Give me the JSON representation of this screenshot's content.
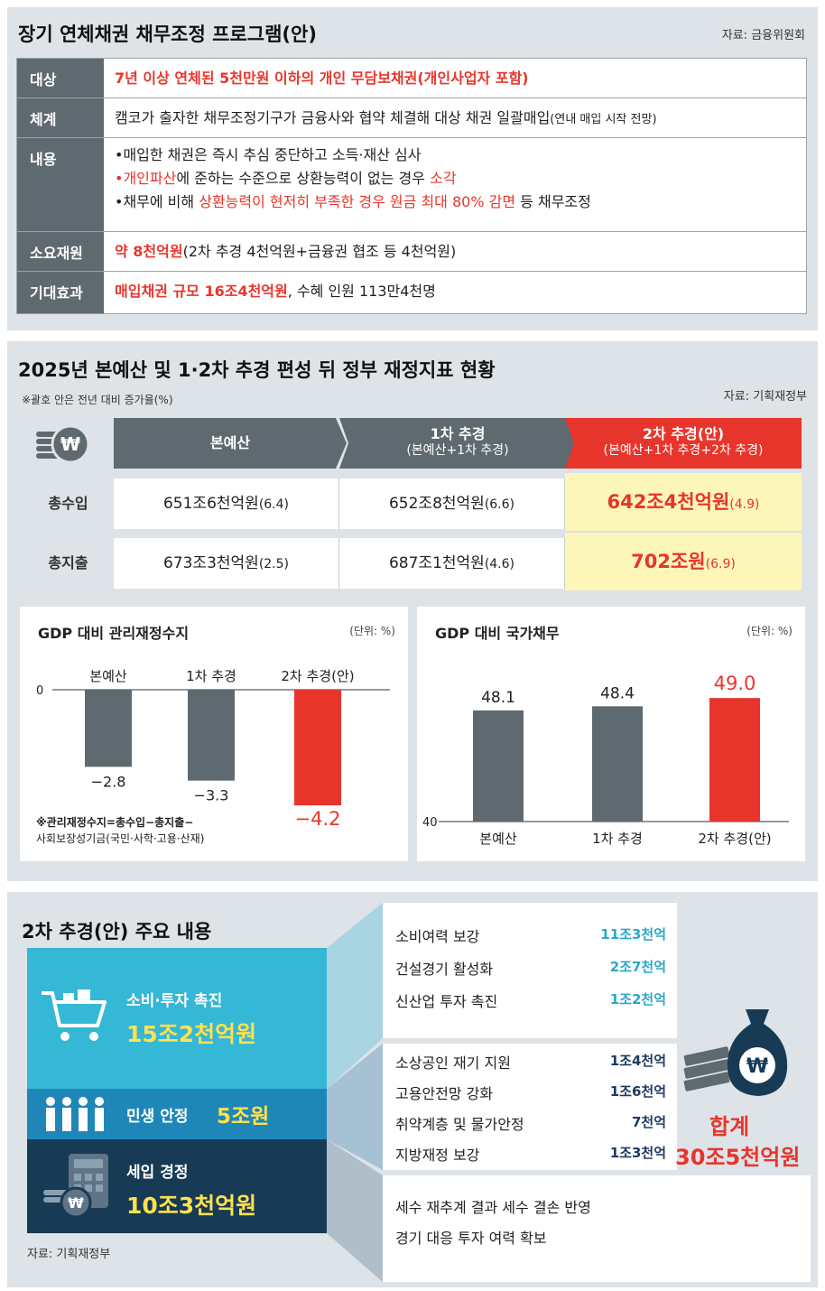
{
  "section1": {
    "title": "장기 연체채권 채무조정 프로그램(안)",
    "source": "자료: 금융위원회",
    "rows": [
      {
        "label": "대상",
        "value": "7년 이상 연체된 5천만원 이하의 개인 무담보채권(개인사업자 포함)"
      },
      {
        "label": "체계",
        "value": "캠코가 출자한 채무조정기구가 금융사와 협약 체결해 대상 채권 일괄매입",
        "value_small": "(연내 매입 시작 전망)"
      },
      {
        "label": "내용",
        "b1": "•매입한 채권은 즉시 추심 중단하고 소득·재산 심사",
        "b2_red1": "•개인파산",
        "b2_mid": "에 준하는 수준으로 상환능력이 없는 경우 ",
        "b2_red2": "소각",
        "b3_pre": "•채무에 비해 ",
        "b3_red": "상환능력이 현저히 부족한 경우 원금 최대 80% 감면",
        "b3_post": " 등 채무조정"
      },
      {
        "label": "소요재원",
        "value_red": "약 8천억원",
        "value_rest": "(2차 추경 4천억원+금융권 협조 등 4천억원)"
      },
      {
        "label": "기대효과",
        "value_red": "매입채권 규모 16조4천억원",
        "value_rest": ", 수혜 인원 113만4천명"
      }
    ]
  },
  "section2": {
    "title": "2025년 본예산 및 1·2차 추경 편성 뒤 정부 재정지표 현황",
    "note": "※괄호 안은 전년 대비 증가율(%)",
    "source": "자료: 기획재정부",
    "headers": [
      {
        "line1": "본예산",
        "line2": ""
      },
      {
        "line1": "1차 추경",
        "line2": "(본예산+1차 추경)"
      },
      {
        "line1": "2차 추경(안)",
        "line2": "(본예산+1차 추경+2차 추경)"
      }
    ],
    "rows": [
      {
        "label": "총수입",
        "c1": "651조6천억원",
        "c1p": "(6.4)",
        "c2": "652조8천억원",
        "c2p": "(6.6)",
        "c3": "642조4천억원",
        "c3p": "(4.9)"
      },
      {
        "label": "총지출",
        "c1": "673조3천억원",
        "c1p": "(2.5)",
        "c2": "687조1천억원",
        "c2p": "(4.6)",
        "c3": "702조원",
        "c3p": "(6.9)"
      }
    ],
    "colors": {
      "header_dark": "#5f6a70",
      "header_red": "#e8352b",
      "highlight": "#fdf6b9"
    }
  },
  "chart_data": [
    {
      "type": "bar",
      "title": "GDP 대비 관리재정수지",
      "unit": "(단위: %)",
      "categories": [
        "본예산",
        "1차 추경",
        "2차 추경(안)"
      ],
      "values": [
        -2.8,
        -3.3,
        -4.2
      ],
      "value_labels": [
        "−2.8",
        "−3.3",
        "−4.2"
      ],
      "baseline_label": "0",
      "highlight_index": 2,
      "colors": [
        "#5f6a70",
        "#5f6a70",
        "#e8352b"
      ],
      "footnote1": "※관리재정수지=총수입−총지출−",
      "footnote2": "사회보장성기금(국민·사학·고용·산재)"
    },
    {
      "type": "bar",
      "title": "GDP 대비 국가채무",
      "unit": "(단위: %)",
      "categories": [
        "본예산",
        "1차 추경",
        "2차 추경(안)"
      ],
      "values": [
        48.1,
        48.4,
        49.0
      ],
      "value_labels": [
        "48.1",
        "48.4",
        "49.0"
      ],
      "baseline_label": "40",
      "highlight_index": 2,
      "colors": [
        "#5f6a70",
        "#5f6a70",
        "#e8352b"
      ]
    }
  ],
  "section3": {
    "title": "2차 추경(안) 주요 내용",
    "source": "자료: 기획재정부",
    "blocks": [
      {
        "name": "소비·투자 촉진",
        "amount": "15조2천억원"
      },
      {
        "name": "민생 안정",
        "amount": "5조원"
      },
      {
        "name": "세입 경정",
        "amount": "10조3천억원"
      }
    ],
    "group1": [
      {
        "item": "소비여력 보강",
        "amount": "11조3천억"
      },
      {
        "item": "건설경기 활성화",
        "amount": "2조7천억"
      },
      {
        "item": "신산업 투자 촉진",
        "amount": "1조2천억"
      }
    ],
    "group2": [
      {
        "item": "소상공인 재기 지원",
        "amount": "1조4천억"
      },
      {
        "item": "고용안전망 강화",
        "amount": "1조6천억"
      },
      {
        "item": "취약계층 및 물가안정",
        "amount": "7천억"
      },
      {
        "item": "지방재정 보강",
        "amount": "1조3천억"
      }
    ],
    "group3": [
      "세수 재추계 결과 세수 결손 반영",
      "경기 대응 투자 여력 확보"
    ],
    "total_label": "합계",
    "total_value": "30조5천억원",
    "colors": {
      "light_blue": "#35b7d6",
      "mid_blue": "#1f87b8",
      "navy": "#173a55",
      "yellow": "#ffe14d"
    }
  }
}
